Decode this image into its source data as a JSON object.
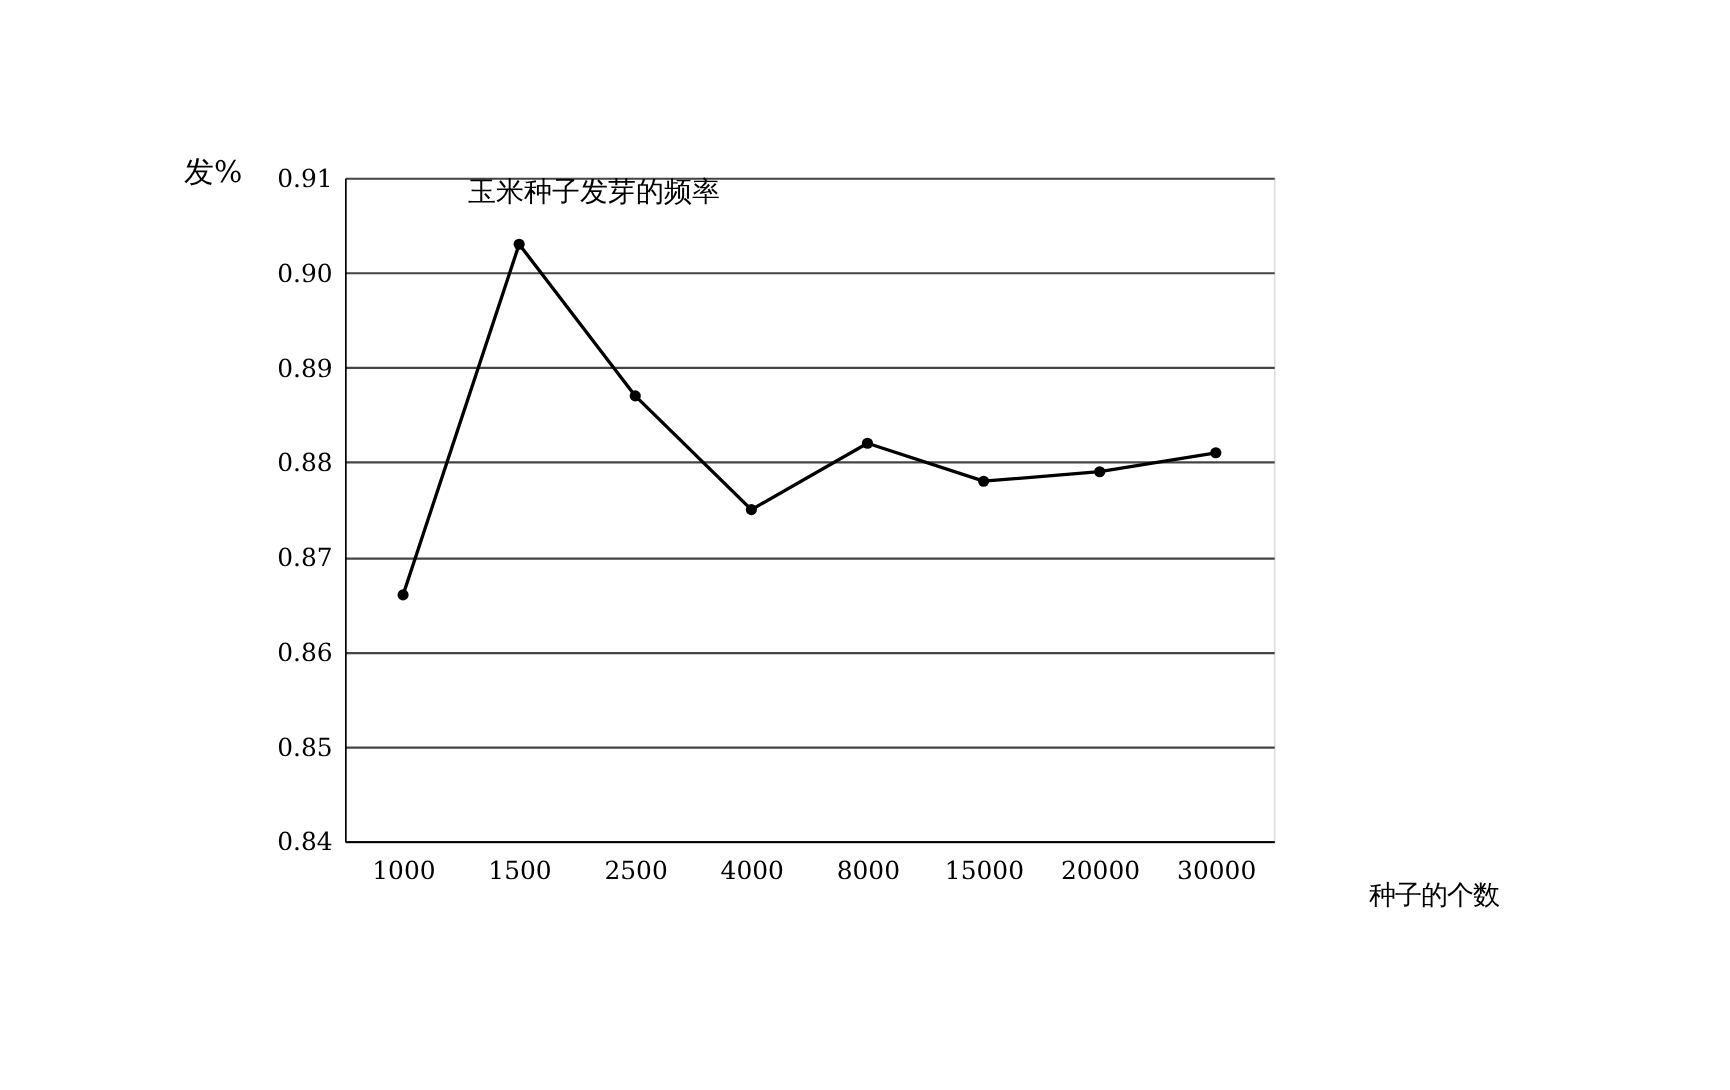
{
  "chart_data": {
    "type": "line",
    "title": "玉米种子发芽的频率",
    "xlabel": "种子的个数",
    "ylabel": "发%",
    "categories": [
      "1000",
      "1500",
      "2500",
      "4000",
      "8000",
      "15000",
      "20000",
      "30000"
    ],
    "values": [
      0.866,
      0.903,
      0.887,
      0.875,
      0.882,
      0.878,
      0.879,
      0.881
    ],
    "color": "#000000",
    "ylim": [
      0.84,
      0.91
    ],
    "yticks": [
      0.84,
      0.85,
      0.86,
      0.87,
      0.88,
      0.89,
      {
        "value": 0.9,
        "label": "0.90"
      },
      0.91
    ],
    "grid": "y",
    "marker": "circle",
    "line_style": "solid"
  }
}
